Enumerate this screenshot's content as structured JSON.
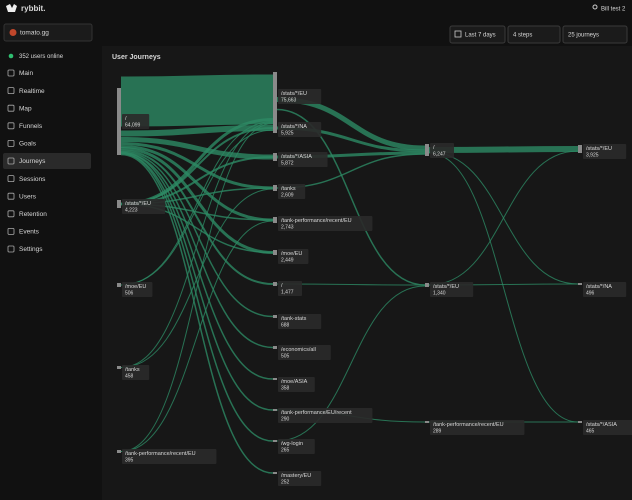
{
  "header": {
    "logo": "rybbit.",
    "user": "Bill test 2"
  },
  "sidebar": {
    "site": "tomato.gg",
    "online": "352 users online",
    "items": [
      "Main",
      "Realtime",
      "Map",
      "Funnels",
      "Goals",
      "Journeys",
      "Sessions",
      "Users",
      "Retention",
      "Events",
      "Settings"
    ]
  },
  "toolbar": {
    "range": "Last 7 days",
    "steps": "4 steps",
    "journeys": "25 journeys"
  },
  "journey": {
    "title": "User Journeys",
    "nodes": [
      {
        "path": "/",
        "count": "64,099"
      },
      {
        "path": "/stats/*/EU",
        "count": "4,223"
      },
      {
        "path": "/moe/EU",
        "count": "506"
      },
      {
        "path": "/tanks",
        "count": "458"
      },
      {
        "path": "/tank-performance/recent/EU",
        "count": "395"
      },
      {
        "path": "/stats/*/EU",
        "count": "75,663"
      },
      {
        "path": "/stats/*/NA",
        "count": "5,925"
      },
      {
        "path": "/stats/*/ASIA",
        "count": "5,872"
      },
      {
        "path": "/tanks",
        "count": "2,609"
      },
      {
        "path": "/tank-performance/recent/EU",
        "count": "2,743"
      },
      {
        "path": "/moe/EU",
        "count": "2,449"
      },
      {
        "path": "/",
        "count": "1,477"
      },
      {
        "path": "/tank-stats",
        "count": "688"
      },
      {
        "path": "/economics/all",
        "count": "505"
      },
      {
        "path": "/moe/ASIA",
        "count": "358"
      },
      {
        "path": "/tank-performance/EU/recent",
        "count": "290"
      },
      {
        "path": "/wg-login",
        "count": "265"
      },
      {
        "path": "/mastery/EU",
        "count": "252"
      },
      {
        "path": "/",
        "count": "6,247"
      },
      {
        "path": "/stats/*/EU",
        "count": "1,340"
      },
      {
        "path": "/tank-performance/recent/EU",
        "count": "289"
      },
      {
        "path": "/stats/*/EU",
        "count": "3,925"
      },
      {
        "path": "/stats/*/NA",
        "count": "496"
      },
      {
        "path": "/stats/*/ASIA",
        "count": "465"
      }
    ]
  }
}
